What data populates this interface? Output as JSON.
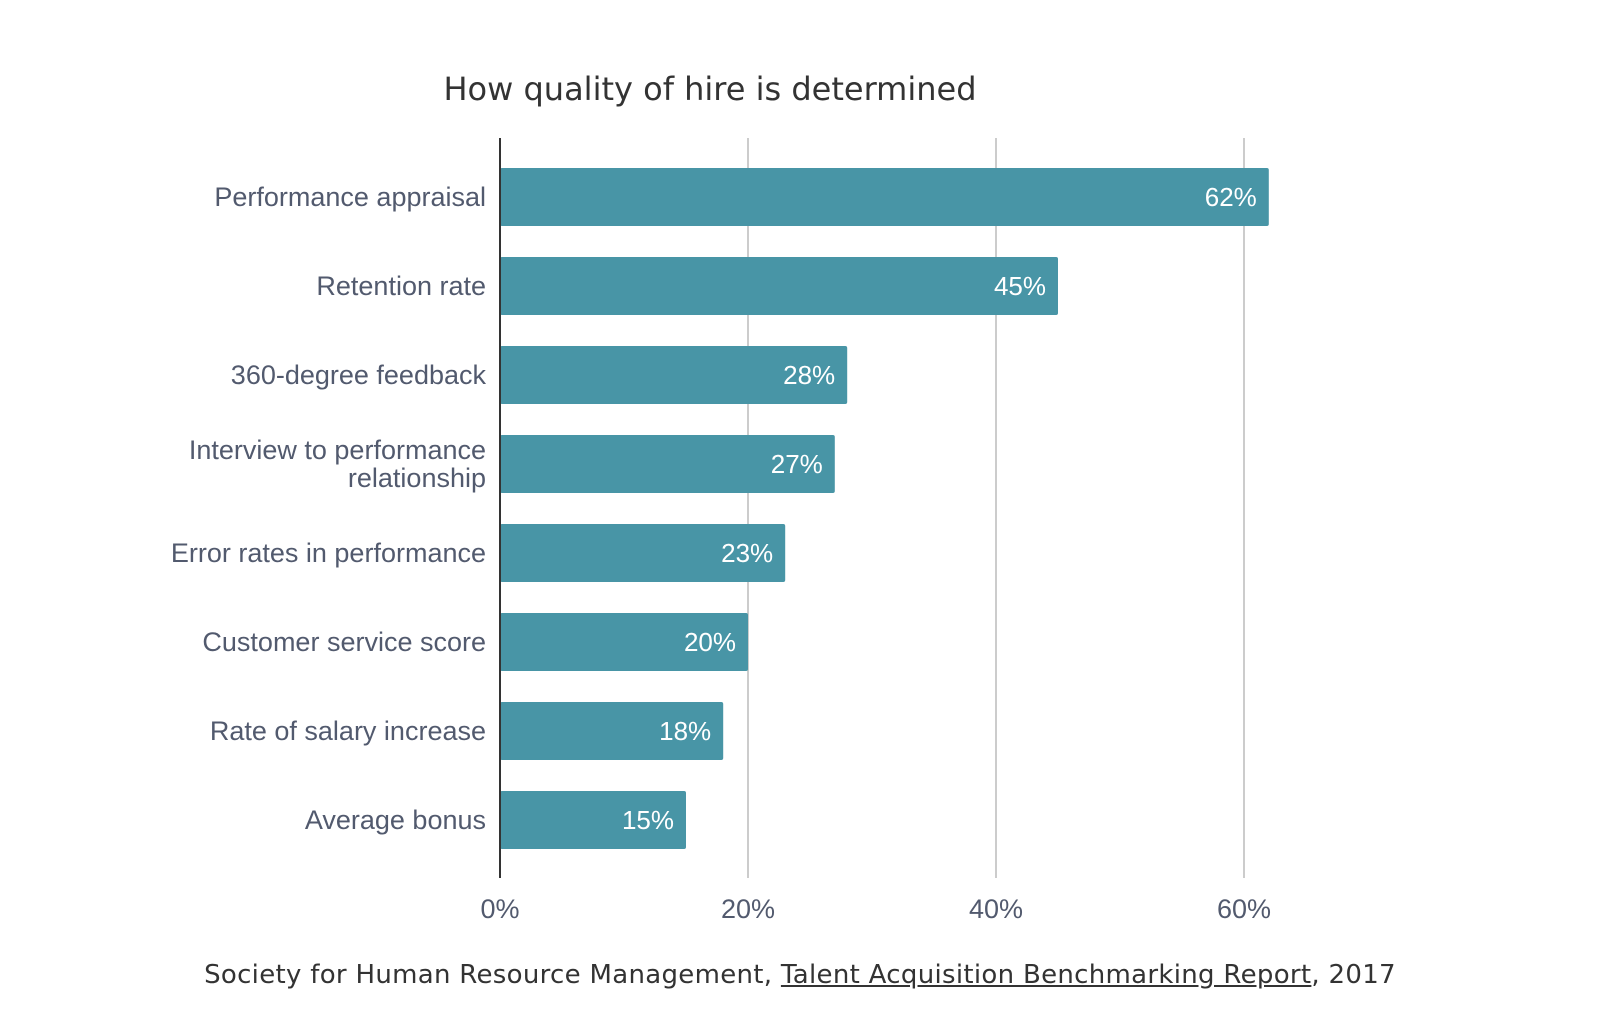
{
  "chart_data": {
    "type": "bar",
    "orientation": "horizontal",
    "title": "How quality of hire is determined",
    "categories": [
      "Performance appraisal",
      "Retention rate",
      "360-degree feedback",
      "Interview to performance relationship",
      "Error rates in performance",
      "Customer service score",
      "Rate of salary increase",
      "Average bonus"
    ],
    "values": [
      62,
      45,
      28,
      27,
      23,
      20,
      18,
      15
    ],
    "value_labels": [
      "62%",
      "45%",
      "28%",
      "27%",
      "23%",
      "20%",
      "18%",
      "15%"
    ],
    "xlim": [
      0,
      60
    ],
    "xticks": [
      0,
      20,
      40,
      60
    ],
    "xtick_labels": [
      "0%",
      "20%",
      "40%",
      "60%"
    ],
    "grid": true,
    "bar_color": "#4895a6",
    "grid_color": "#cccccc",
    "axis_color": "#333333"
  },
  "source": {
    "prefix": "Society for Human Resource Management, ",
    "link_text": "Talent Acquisition Benchmarking Report",
    "suffix": ", 2017"
  }
}
